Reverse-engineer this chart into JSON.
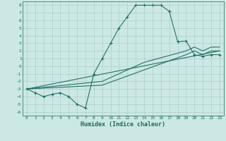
{
  "xlabel": "Humidex (Indice chaleur)",
  "bg_color": "#cce8e4",
  "grid_color": "#aacfcc",
  "line_color": "#1a6b60",
  "xlim": [
    -0.5,
    23.5
  ],
  "ylim": [
    -6.5,
    8.5
  ],
  "xticks": [
    0,
    1,
    2,
    3,
    4,
    5,
    6,
    7,
    8,
    9,
    10,
    11,
    12,
    13,
    14,
    15,
    16,
    17,
    18,
    19,
    20,
    21,
    22,
    23
  ],
  "yticks": [
    -6,
    -5,
    -4,
    -3,
    -2,
    -1,
    0,
    1,
    2,
    3,
    4,
    5,
    6,
    7,
    8
  ],
  "line1_x": [
    0,
    1,
    2,
    3,
    4,
    5,
    6,
    7,
    8,
    9,
    10,
    11,
    12,
    13,
    14,
    15,
    16,
    17,
    18,
    19,
    20,
    21,
    22,
    23
  ],
  "line1_y": [
    -3,
    -3.5,
    -4,
    -3.7,
    -3.5,
    -4,
    -5,
    -5.5,
    -1,
    1,
    3,
    5,
    6.5,
    8,
    8,
    8,
    8,
    7.2,
    3.2,
    3.3,
    1.5,
    1.3,
    1.5,
    1.5
  ],
  "line2_x": [
    0,
    9,
    14,
    19,
    20,
    21,
    22,
    23
  ],
  "line2_y": [
    -3,
    -2,
    0.5,
    2.0,
    2.5,
    2.0,
    2.5,
    2.5
  ],
  "line3_x": [
    0,
    9,
    14,
    19,
    20,
    21,
    22,
    23
  ],
  "line3_y": [
    -3,
    -2.5,
    -0.5,
    1.5,
    2.0,
    1.5,
    2.0,
    2.0
  ],
  "line4_x": [
    0,
    23
  ],
  "line4_y": [
    -3,
    2.0
  ]
}
